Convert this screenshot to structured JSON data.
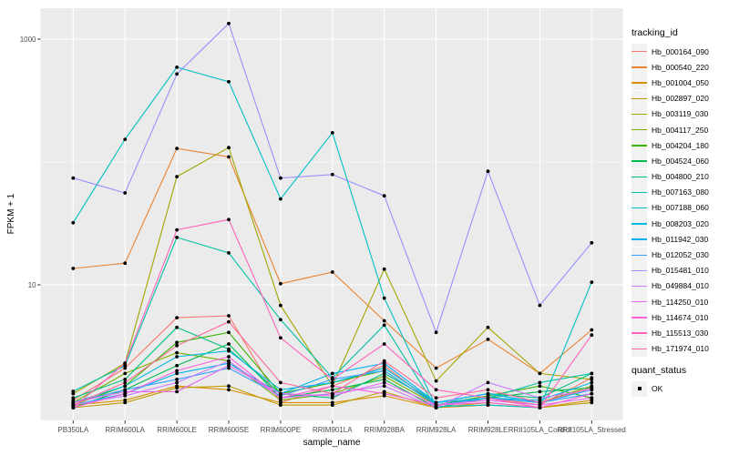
{
  "figure": {
    "background": "#FFFFFF",
    "panel_bg": "#EBEBEB",
    "grid_color": "#FFFFFF",
    "tick_color": "#333333",
    "tick_label_color": "#4D4D4D",
    "legend_key_bg": "#F2F2F2",
    "legends": {
      "tracking": {
        "title": "tracking_id"
      },
      "quant": {
        "title": "quant_status",
        "items": [
          {
            "label": "OK",
            "marker_color": "#000000"
          }
        ]
      }
    }
  },
  "chart_data": {
    "type": "line",
    "title": "",
    "xlabel": "sample_name",
    "ylabel": "FPKM + 1",
    "y_scale": "log10",
    "ylim": [
      1,
      1760
    ],
    "y_axis_ticks": [
      {
        "label": "1000",
        "value": 1000
      },
      {
        "label": "10",
        "value": 10
      }
    ],
    "y_minor_gridlines": [
      1,
      100
    ],
    "grid": true,
    "legend_position": "right",
    "marker": {
      "shape": "point",
      "color": "#000000",
      "meaning": "OK"
    },
    "categories": [
      "PB350LA",
      "RRIM600LA",
      "RRIM600LE",
      "RRIM600SE",
      "RRIM600PE",
      "RRIM901LA",
      "RRIM928BA",
      "RRIM928LA",
      "RRIM928LE",
      "RRII105LA_Control",
      "RRII105LA_Stressed"
    ],
    "series": [
      {
        "name": "Hb_000164_090",
        "color": "#F8766D",
        "values": [
          1.15,
          2.1,
          5.4,
          5.6,
          1.1,
          1.5,
          2.2,
          1.05,
          1.2,
          1.05,
          1.75
        ]
      },
      {
        "name": "Hb_000540_220",
        "color": "#EA8331",
        "values": [
          13.6,
          15,
          129,
          110,
          10.2,
          12.7,
          5.1,
          2.1,
          3.6,
          1.9,
          4.3
        ]
      },
      {
        "name": "Hb_001004_050",
        "color": "#D89000",
        "values": [
          1.05,
          1.15,
          1.5,
          1.4,
          1.1,
          1.1,
          1.25,
          1.0,
          1.05,
          1.0,
          1.15
        ]
      },
      {
        "name": "Hb_002897_020",
        "color": "#C09B00",
        "values": [
          1.0,
          1.1,
          1.45,
          1.5,
          1.05,
          1.05,
          1.35,
          1.0,
          1.1,
          1.0,
          1.1
        ]
      },
      {
        "name": "Hb_003119_030",
        "color": "#A3A500",
        "values": [
          1.3,
          2.3,
          76,
          131,
          6.8,
          1.5,
          13.4,
          1.65,
          4.5,
          1.9,
          1.7
        ]
      },
      {
        "name": "Hb_004117_250",
        "color": "#7CAE00",
        "values": [
          1.1,
          1.9,
          2.8,
          2.4,
          1.15,
          1.3,
          1.8,
          1.05,
          1.2,
          1.1,
          1.5
        ]
      },
      {
        "name": "Hb_004204_180",
        "color": "#39B600",
        "values": [
          1.05,
          1.5,
          3.4,
          4.1,
          1.3,
          1.6,
          2.0,
          1.05,
          1.25,
          1.5,
          1.2
        ]
      },
      {
        "name": "Hb_004524_060",
        "color": "#00BB4E",
        "values": [
          1.0,
          1.4,
          2.2,
          3.3,
          1.2,
          1.4,
          1.7,
          1.0,
          1.2,
          1.35,
          1.45
        ]
      },
      {
        "name": "Hb_004800_210",
        "color": "#00BF7D",
        "values": [
          1.2,
          1.7,
          4.5,
          3.0,
          1.3,
          1.2,
          1.9,
          1.1,
          1.3,
          1.2,
          1.9
        ]
      },
      {
        "name": "Hb_007163_080",
        "color": "#00C1A3",
        "values": [
          1.36,
          2.2,
          24.3,
          18.2,
          5.2,
          1.75,
          4.7,
          1.0,
          1.2,
          1.6,
          1.9
        ]
      },
      {
        "name": "Hb_007188_060",
        "color": "#00BFC4",
        "values": [
          32,
          153,
          590,
          450,
          50,
          173,
          7.8,
          1.02,
          1.05,
          1.0,
          10.5
        ]
      },
      {
        "name": "Hb_008203_020",
        "color": "#00BAE0",
        "values": [
          1.1,
          1.5,
          2.6,
          2.9,
          1.4,
          1.6,
          2.1,
          1.1,
          1.2,
          1.15,
          1.6
        ]
      },
      {
        "name": "Hb_011942_030",
        "color": "#00B0F6",
        "values": [
          1.05,
          1.3,
          1.9,
          2.3,
          1.3,
          1.9,
          2.3,
          1.1,
          1.3,
          1.1,
          1.4
        ]
      },
      {
        "name": "Hb_012052_030",
        "color": "#35A2FF",
        "values": [
          1.1,
          1.4,
          1.7,
          2.1,
          1.25,
          1.7,
          2.0,
          1.05,
          1.2,
          1.1,
          1.3
        ]
      },
      {
        "name": "Hb_015481_010",
        "color": "#9590FF",
        "values": [
          74,
          56,
          520,
          1340,
          74,
          79,
          53,
          4.1,
          84,
          6.8,
          22
        ]
      },
      {
        "name": "Hb_049884_010",
        "color": "#C77CFF",
        "values": [
          1.05,
          1.25,
          1.6,
          2.4,
          1.2,
          1.3,
          1.5,
          1.0,
          1.6,
          1.2,
          1.4
        ]
      },
      {
        "name": "Hb_114250_010",
        "color": "#E76BF3",
        "values": [
          1.1,
          1.35,
          1.35,
          2.2,
          1.3,
          1.25,
          1.6,
          1.05,
          1.15,
          1.05,
          1.2
        ]
      },
      {
        "name": "Hb_114674_010",
        "color": "#FA62DB",
        "values": [
          1.0,
          1.3,
          2.0,
          2.6,
          1.2,
          1.5,
          1.3,
          1.05,
          1.1,
          1.0,
          1.3
        ]
      },
      {
        "name": "Hb_115513_030",
        "color": "#FF62BC",
        "values": [
          1.0,
          2.3,
          28,
          34,
          3.7,
          1.7,
          3.3,
          1.4,
          1.2,
          1.0,
          3.9
        ]
      },
      {
        "name": "Hb_171974_010",
        "color": "#FF6A98",
        "values": [
          1.05,
          1.6,
          3.2,
          5.0,
          1.6,
          1.3,
          2.4,
          1.2,
          1.4,
          1.1,
          1.45
        ]
      }
    ]
  }
}
